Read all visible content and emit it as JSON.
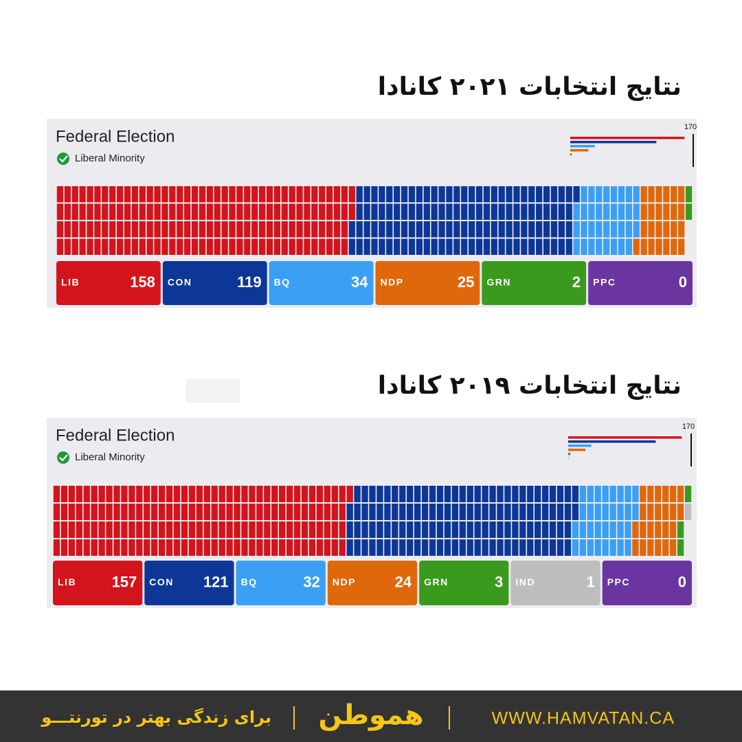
{
  "panels": [
    {
      "heading": "نتایج انتخابات ۲۰۲۱ کانادا",
      "title": "Federal Election",
      "status": "Liberal Minority",
      "majority": 170,
      "parties": [
        {
          "name": "LIB",
          "seats": 158,
          "color": "#d3141c"
        },
        {
          "name": "CON",
          "seats": 119,
          "color": "#0d3796"
        },
        {
          "name": "BQ",
          "seats": 34,
          "color": "#3b9ff3"
        },
        {
          "name": "NDP",
          "seats": 25,
          "color": "#e0680c"
        },
        {
          "name": "GRN",
          "seats": 2,
          "color": "#3a9a1e"
        },
        {
          "name": "PPC",
          "seats": 0,
          "color": "#6a359e"
        }
      ]
    },
    {
      "heading": "نتایج انتخابات ۲۰۱۹ کانادا",
      "title": "Federal Election",
      "status": "Liberal Minority",
      "majority": 170,
      "parties": [
        {
          "name": "LIB",
          "seats": 157,
          "color": "#d3141c"
        },
        {
          "name": "CON",
          "seats": 121,
          "color": "#0d3796"
        },
        {
          "name": "BQ",
          "seats": 32,
          "color": "#3b9ff3"
        },
        {
          "name": "NDP",
          "seats": 24,
          "color": "#e0680c"
        },
        {
          "name": "GRN",
          "seats": 3,
          "color": "#3a9a1e"
        },
        {
          "name": "IND",
          "seats": 1,
          "color": "#bdbdbd"
        },
        {
          "name": "PPC",
          "seats": 0,
          "color": "#6a359e"
        }
      ]
    }
  ],
  "footer": {
    "slogan": "برای زندگی بهتر در تورنتـــو",
    "logo": "هموطن",
    "url": "WWW.HAMVATAN.CA"
  }
}
